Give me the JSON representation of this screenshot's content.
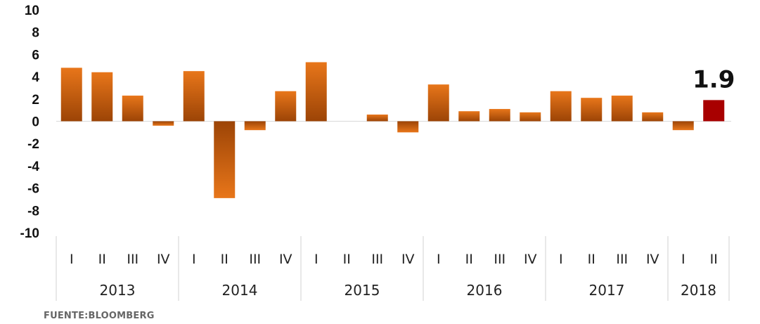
{
  "chart_data": {
    "type": "bar",
    "title": "",
    "xlabel": "",
    "ylabel": "",
    "ylim": [
      -10,
      10
    ],
    "yticks": [
      10,
      8,
      6,
      4,
      2,
      0,
      -2,
      -4,
      -6,
      -8,
      -10
    ],
    "grid": false,
    "legend": "none",
    "groups": [
      {
        "year": "2013",
        "quarters": [
          "I",
          "II",
          "III",
          "IV"
        ]
      },
      {
        "year": "2014",
        "quarters": [
          "I",
          "II",
          "III",
          "IV"
        ]
      },
      {
        "year": "2015",
        "quarters": [
          "I",
          "II",
          "III",
          "IV"
        ]
      },
      {
        "year": "2016",
        "quarters": [
          "I",
          "II",
          "III",
          "IV"
        ]
      },
      {
        "year": "2017",
        "quarters": [
          "I",
          "II",
          "III",
          "IV"
        ]
      },
      {
        "year": "2018",
        "quarters": [
          "I",
          "II"
        ]
      }
    ],
    "values": [
      4.8,
      4.4,
      2.3,
      -0.4,
      4.5,
      -6.9,
      -0.8,
      2.7,
      5.3,
      0,
      0.6,
      -1.0,
      3.3,
      0.9,
      1.1,
      0.8,
      2.7,
      2.1,
      2.3,
      0.8,
      -0.8,
      1.9
    ],
    "highlight": {
      "index": 21,
      "label": "1.9",
      "color": "#a80000"
    },
    "bar_color_top": "#e8761a",
    "bar_color_bottom": "#9c4406"
  },
  "source": "FUENTE:BLOOMBERG"
}
